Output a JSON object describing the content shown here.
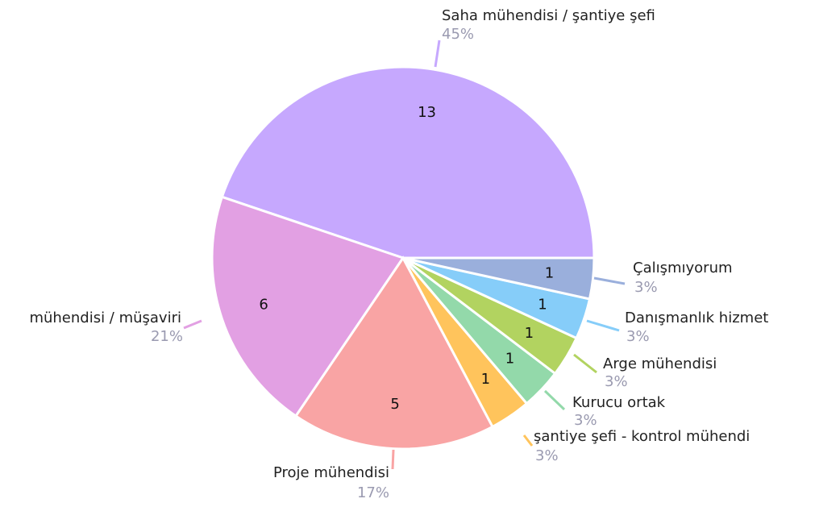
{
  "chart_data": {
    "type": "pie",
    "categories": [
      "Saha mühendisi / şantiye şefi",
      "mühendisi / müşaviri",
      "Proje mühendisi",
      "şantiye şefi - kontrol mühendi",
      "Kurucu ortak",
      "Arge mühendisi",
      "Danışmanlık hizmet",
      "Çalışmıyorum"
    ],
    "values": [
      13,
      6,
      5,
      1,
      1,
      1,
      1,
      1
    ],
    "percent_labels": [
      "45%",
      "21%",
      "17%",
      "3%",
      "3%",
      "3%",
      "3%",
      "3%"
    ],
    "colors": [
      "#c6a8fe",
      "#e2a0e3",
      "#f9a4a4",
      "#ffc45c",
      "#93d9aa",
      "#b2d360",
      "#86cdf9",
      "#9aafdc"
    ]
  }
}
